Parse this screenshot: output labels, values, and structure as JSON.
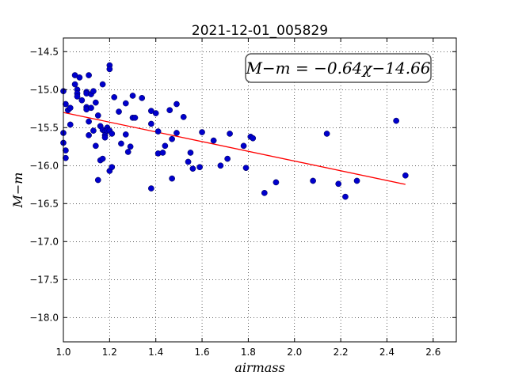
{
  "chart_data": {
    "type": "scatter",
    "title": "2021-12-01_005829",
    "xlabel": "airmass",
    "ylabel": "M−m",
    "annotation": "M−m = −0.64χ−14.66",
    "xlim": [
      1.0,
      2.7
    ],
    "ylim": [
      -18.32,
      -14.32
    ],
    "y_inverted": true,
    "grid": true,
    "xticks": [
      1.0,
      1.2,
      1.4,
      1.6,
      1.8,
      2.0,
      2.2,
      2.4,
      2.6
    ],
    "xtick_labels": [
      "1.0",
      "1.2",
      "1.4",
      "1.6",
      "1.8",
      "2.0",
      "2.2",
      "2.4",
      "2.6"
    ],
    "yticks": [
      -14.5,
      -15.0,
      -15.5,
      -16.0,
      -16.5,
      -17.0,
      -17.5,
      -18.0
    ],
    "ytick_labels": [
      "−14.5",
      "−15.0",
      "−15.5",
      "−16.0",
      "−16.5",
      "−17.0",
      "−17.5",
      "−18.0"
    ],
    "fit": {
      "slope": -0.64,
      "intercept": -14.66,
      "x_range": [
        1.0,
        2.48
      ],
      "color": "#ff0000"
    },
    "point_color": "#0000cc",
    "points": [
      [
        1.0,
        -15.02
      ],
      [
        1.0,
        -15.57
      ],
      [
        1.0,
        -15.7
      ],
      [
        1.01,
        -15.9
      ],
      [
        1.01,
        -15.8
      ],
      [
        1.01,
        -15.19
      ],
      [
        1.02,
        -15.27
      ],
      [
        1.03,
        -15.24
      ],
      [
        1.03,
        -15.46
      ],
      [
        1.05,
        -14.81
      ],
      [
        1.05,
        -14.93
      ],
      [
        1.06,
        -15.0
      ],
      [
        1.06,
        -15.05
      ],
      [
        1.06,
        -15.09
      ],
      [
        1.07,
        -14.84
      ],
      [
        1.08,
        -15.14
      ],
      [
        1.1,
        -15.03
      ],
      [
        1.1,
        -15.23
      ],
      [
        1.1,
        -15.26
      ],
      [
        1.1,
        -15.05
      ],
      [
        1.11,
        -14.81
      ],
      [
        1.11,
        -15.42
      ],
      [
        1.11,
        -15.6
      ],
      [
        1.12,
        -15.24
      ],
      [
        1.12,
        -15.06
      ],
      [
        1.13,
        -15.02
      ],
      [
        1.13,
        -15.54
      ],
      [
        1.14,
        -15.17
      ],
      [
        1.14,
        -15.74
      ],
      [
        1.15,
        -15.34
      ],
      [
        1.15,
        -16.19
      ],
      [
        1.16,
        -15.48
      ],
      [
        1.16,
        -15.93
      ],
      [
        1.17,
        -15.91
      ],
      [
        1.17,
        -14.93
      ],
      [
        1.17,
        -15.53
      ],
      [
        1.18,
        -15.55
      ],
      [
        1.18,
        -15.6
      ],
      [
        1.18,
        -15.63
      ],
      [
        1.19,
        -15.5
      ],
      [
        1.19,
        -15.54
      ],
      [
        1.2,
        -14.68
      ],
      [
        1.2,
        -14.73
      ],
      [
        1.2,
        -15.54
      ],
      [
        1.2,
        -16.07
      ],
      [
        1.21,
        -16.02
      ],
      [
        1.21,
        -15.58
      ],
      [
        1.22,
        -15.1
      ],
      [
        1.24,
        -15.29
      ],
      [
        1.25,
        -15.71
      ],
      [
        1.27,
        -15.59
      ],
      [
        1.27,
        -15.18
      ],
      [
        1.28,
        -15.82
      ],
      [
        1.29,
        -15.75
      ],
      [
        1.3,
        -15.08
      ],
      [
        1.3,
        -15.37
      ],
      [
        1.31,
        -15.37
      ],
      [
        1.34,
        -15.11
      ],
      [
        1.38,
        -15.28
      ],
      [
        1.38,
        -15.45
      ],
      [
        1.38,
        -16.3
      ],
      [
        1.4,
        -15.31
      ],
      [
        1.41,
        -15.84
      ],
      [
        1.41,
        -15.55
      ],
      [
        1.43,
        -15.83
      ],
      [
        1.44,
        -15.74
      ],
      [
        1.46,
        -15.27
      ],
      [
        1.47,
        -16.17
      ],
      [
        1.47,
        -15.65
      ],
      [
        1.49,
        -15.57
      ],
      [
        1.49,
        -15.19
      ],
      [
        1.52,
        -15.36
      ],
      [
        1.54,
        -15.95
      ],
      [
        1.55,
        -15.83
      ],
      [
        1.56,
        -16.04
      ],
      [
        1.59,
        -16.02
      ],
      [
        1.6,
        -15.56
      ],
      [
        1.65,
        -15.67
      ],
      [
        1.68,
        -16.0
      ],
      [
        1.71,
        -15.91
      ],
      [
        1.72,
        -15.58
      ],
      [
        1.78,
        -15.74
      ],
      [
        1.79,
        -16.03
      ],
      [
        1.81,
        -15.62
      ],
      [
        1.82,
        -15.64
      ],
      [
        1.87,
        -16.36
      ],
      [
        1.92,
        -16.22
      ],
      [
        2.08,
        -16.2
      ],
      [
        2.14,
        -15.58
      ],
      [
        2.19,
        -16.24
      ],
      [
        2.22,
        -16.41
      ],
      [
        2.27,
        -16.2
      ],
      [
        2.44,
        -15.41
      ],
      [
        2.48,
        -16.13
      ]
    ]
  }
}
